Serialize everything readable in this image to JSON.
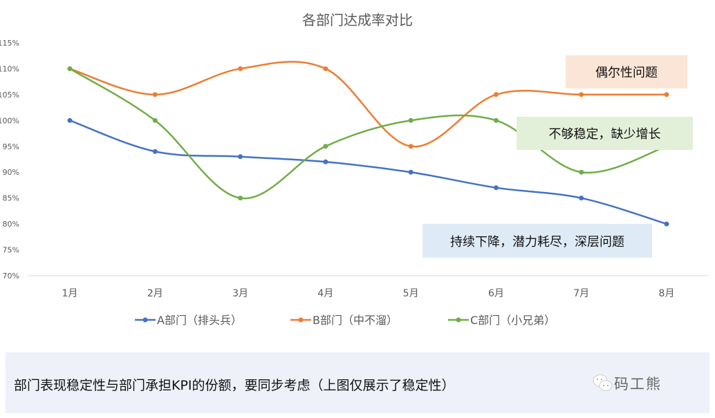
{
  "chart_data": {
    "type": "line",
    "title": "各部门达成率对比",
    "categories": [
      "1月",
      "2月",
      "3月",
      "4月",
      "5月",
      "6月",
      "7月",
      "8月"
    ],
    "ylim": [
      70,
      115
    ],
    "yticks": [
      70,
      75,
      80,
      85,
      90,
      95,
      100,
      105,
      110,
      115
    ],
    "ytick_suffix": "%",
    "legend_position": "bottom",
    "grid": false,
    "series": [
      {
        "name": "A部门（排头兵）",
        "color": "#4472c4",
        "values": [
          100,
          94,
          93,
          92,
          90,
          87,
          85,
          80
        ]
      },
      {
        "name": "B部门（中不溜）",
        "color": "#ed7d31",
        "values": [
          110,
          105,
          110,
          110,
          95,
          105,
          105,
          105
        ]
      },
      {
        "name": "C部门（小兄弟）",
        "color": "#70ad47",
        "values": [
          110,
          100,
          85,
          95,
          100,
          100,
          90,
          95
        ]
      }
    ],
    "annotations": [
      {
        "text": "偶尔性问题",
        "bg": "#fbe5d6"
      },
      {
        "text": "不够稳定，缺少增长",
        "bg": "#e2f0d9"
      },
      {
        "text": "持续下降，潜力耗尽，深层问题",
        "bg": "#deebf7"
      }
    ]
  },
  "footer": {
    "text": "部门表现稳定性与部门承担KPI的份额，要同步考虑（上图仅展示了稳定性）",
    "brand": "码工熊"
  }
}
